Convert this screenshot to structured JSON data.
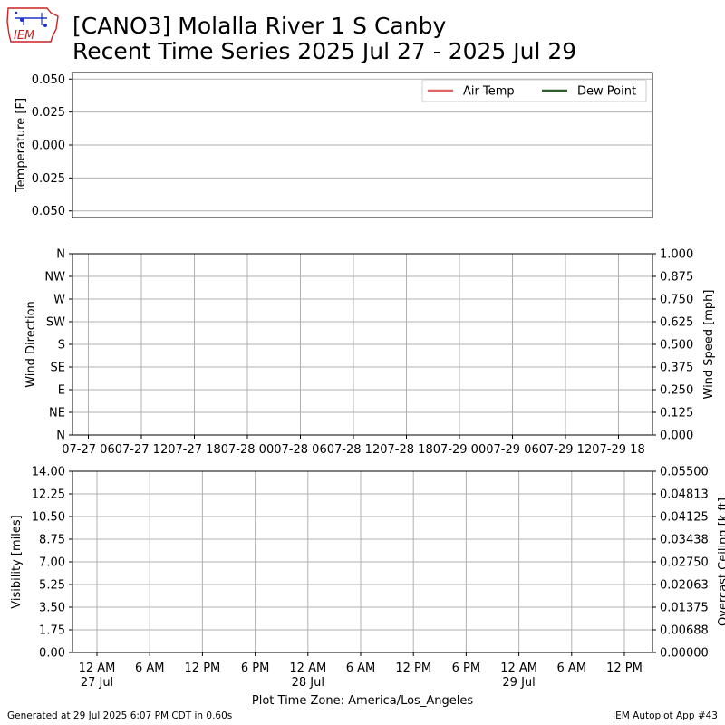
{
  "header": {
    "title_line1": "[CANO3] Molalla River 1 S Canby",
    "title_line2": "Recent Time Series 2025 Jul 27 - 2025 Jul 29",
    "logo_text": "IEM"
  },
  "footer": {
    "left": "Generated at 29 Jul 2025 6:07 PM CDT in 0.60s",
    "right": "IEM Autoplot App #43"
  },
  "colors": {
    "air_temp": "#e06666",
    "dew_point": "#2e5e2e",
    "grid": "#b0b0b0",
    "ceiling_label": "#008000",
    "logo_red": "#cc2222",
    "logo_blue": "#2233cc"
  },
  "chart_data": [
    {
      "type": "line",
      "panel": "temperature",
      "ylabel": "Temperature [F]",
      "yticks": [
        "0.050",
        "0.025",
        "0.000",
        "0.025",
        "0.050"
      ],
      "ylim": [
        -0.055,
        0.055
      ],
      "grid": true,
      "legend": "top-right",
      "series": [
        {
          "name": "Air Temp",
          "values": []
        },
        {
          "name": "Dew Point",
          "values": []
        }
      ]
    },
    {
      "type": "scatter",
      "panel": "wind",
      "ylabel": "Wind Direction",
      "y2label": "Wind Speed [mph]",
      "yticks": [
        "N",
        "NW",
        "W",
        "SW",
        "S",
        "SE",
        "E",
        "NE",
        "N"
      ],
      "y2ticks": [
        "1.000",
        "0.875",
        "0.750",
        "0.625",
        "0.500",
        "0.375",
        "0.250",
        "0.125",
        "0.000"
      ],
      "xticks": [
        "07-27 06",
        "07-27 12",
        "07-27 18",
        "07-28 00",
        "07-28 06",
        "07-28 12",
        "07-28 18",
        "07-29 00",
        "07-29 06",
        "07-29 12",
        "07-29 18"
      ],
      "grid": true,
      "series": []
    },
    {
      "type": "line",
      "panel": "visibility",
      "ylabel": "Visibility [miles]",
      "y2label": "Overcast Ceiling [k ft]",
      "yticks": [
        "14.00",
        "12.25",
        "10.50",
        "8.75",
        "7.00",
        "5.25",
        "3.50",
        "1.75",
        "0.00"
      ],
      "y2ticks": [
        "0.05500",
        "0.04813",
        "0.04125",
        "0.03438",
        "0.02750",
        "0.02063",
        "0.01375",
        "0.00688",
        "0.00000"
      ],
      "xticks": [
        {
          "l1": "12 AM",
          "l2": "27 Jul"
        },
        {
          "l1": "6 AM",
          "l2": ""
        },
        {
          "l1": "12 PM",
          "l2": ""
        },
        {
          "l1": "6 PM",
          "l2": ""
        },
        {
          "l1": "12 AM",
          "l2": "28 Jul"
        },
        {
          "l1": "6 AM",
          "l2": ""
        },
        {
          "l1": "12 PM",
          "l2": ""
        },
        {
          "l1": "6 PM",
          "l2": ""
        },
        {
          "l1": "12 AM",
          "l2": "29 Jul"
        },
        {
          "l1": "6 AM",
          "l2": ""
        },
        {
          "l1": "12 PM",
          "l2": ""
        }
      ],
      "xlabel": "Plot Time Zone: America/Los_Angeles",
      "ylim": [
        0,
        14
      ],
      "y2lim": [
        0,
        0.055
      ],
      "grid": true,
      "series": []
    }
  ]
}
